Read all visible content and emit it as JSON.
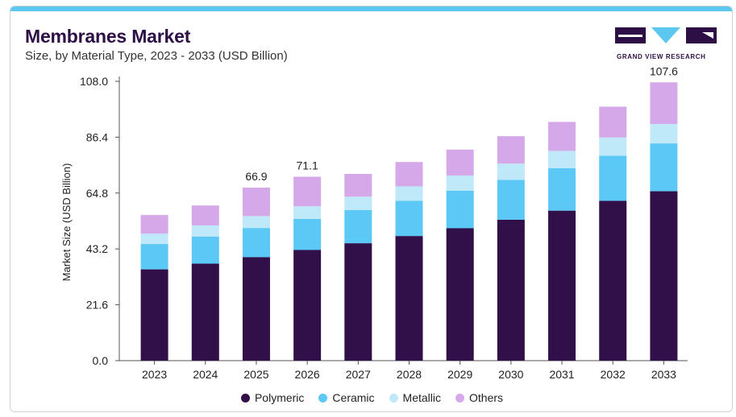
{
  "header": {
    "title": "Membranes Market",
    "subtitle": "Size, by Material Type, 2023 - 2033 (USD Billion)"
  },
  "logo": {
    "text": "GRAND VIEW RESEARCH"
  },
  "colors": {
    "Polymeric": "#310f48",
    "Ceramic": "#5bc8f5",
    "Metallic": "#bfe8f8",
    "Others": "#d5a8ea",
    "accent": "#5cc8f0"
  },
  "chart_data": {
    "type": "bar",
    "stacked": true,
    "title": "Membranes Market",
    "subtitle": "Size, by Material Type, 2023 - 2033 (USD Billion)",
    "xlabel": "",
    "ylabel": "Market Size (USD Billion)",
    "ylim": [
      0,
      108.0
    ],
    "yticks": [
      "0.0",
      "21.6",
      "43.2",
      "64.8",
      "86.4",
      "108.0"
    ],
    "categories": [
      "2023",
      "2024",
      "2025",
      "2026",
      "2027",
      "2028",
      "2029",
      "2030",
      "2031",
      "2032",
      "2033"
    ],
    "series": [
      {
        "name": "Polymeric",
        "values": [
          35.3,
          37.5,
          40.0,
          42.8,
          45.4,
          48.2,
          51.2,
          54.5,
          58.0,
          61.8,
          65.5
        ]
      },
      {
        "name": "Ceramic",
        "values": [
          9.8,
          10.5,
          11.3,
          12.0,
          12.8,
          13.6,
          14.5,
          15.4,
          16.4,
          17.4,
          18.5
        ]
      },
      {
        "name": "Metallic",
        "values": [
          4.0,
          4.3,
          4.6,
          4.9,
          5.2,
          5.6,
          5.9,
          6.3,
          6.7,
          7.1,
          7.5
        ]
      },
      {
        "name": "Others",
        "values": [
          7.2,
          7.7,
          11.0,
          11.4,
          8.8,
          9.4,
          10.0,
          10.6,
          11.2,
          11.9,
          16.1
        ]
      }
    ],
    "annotations": [
      {
        "category": "2025",
        "label": "66.9"
      },
      {
        "category": "2026",
        "label": "71.1"
      },
      {
        "category": "2033",
        "label": "107.6"
      }
    ],
    "grid": false,
    "legend": "bottom-center"
  }
}
